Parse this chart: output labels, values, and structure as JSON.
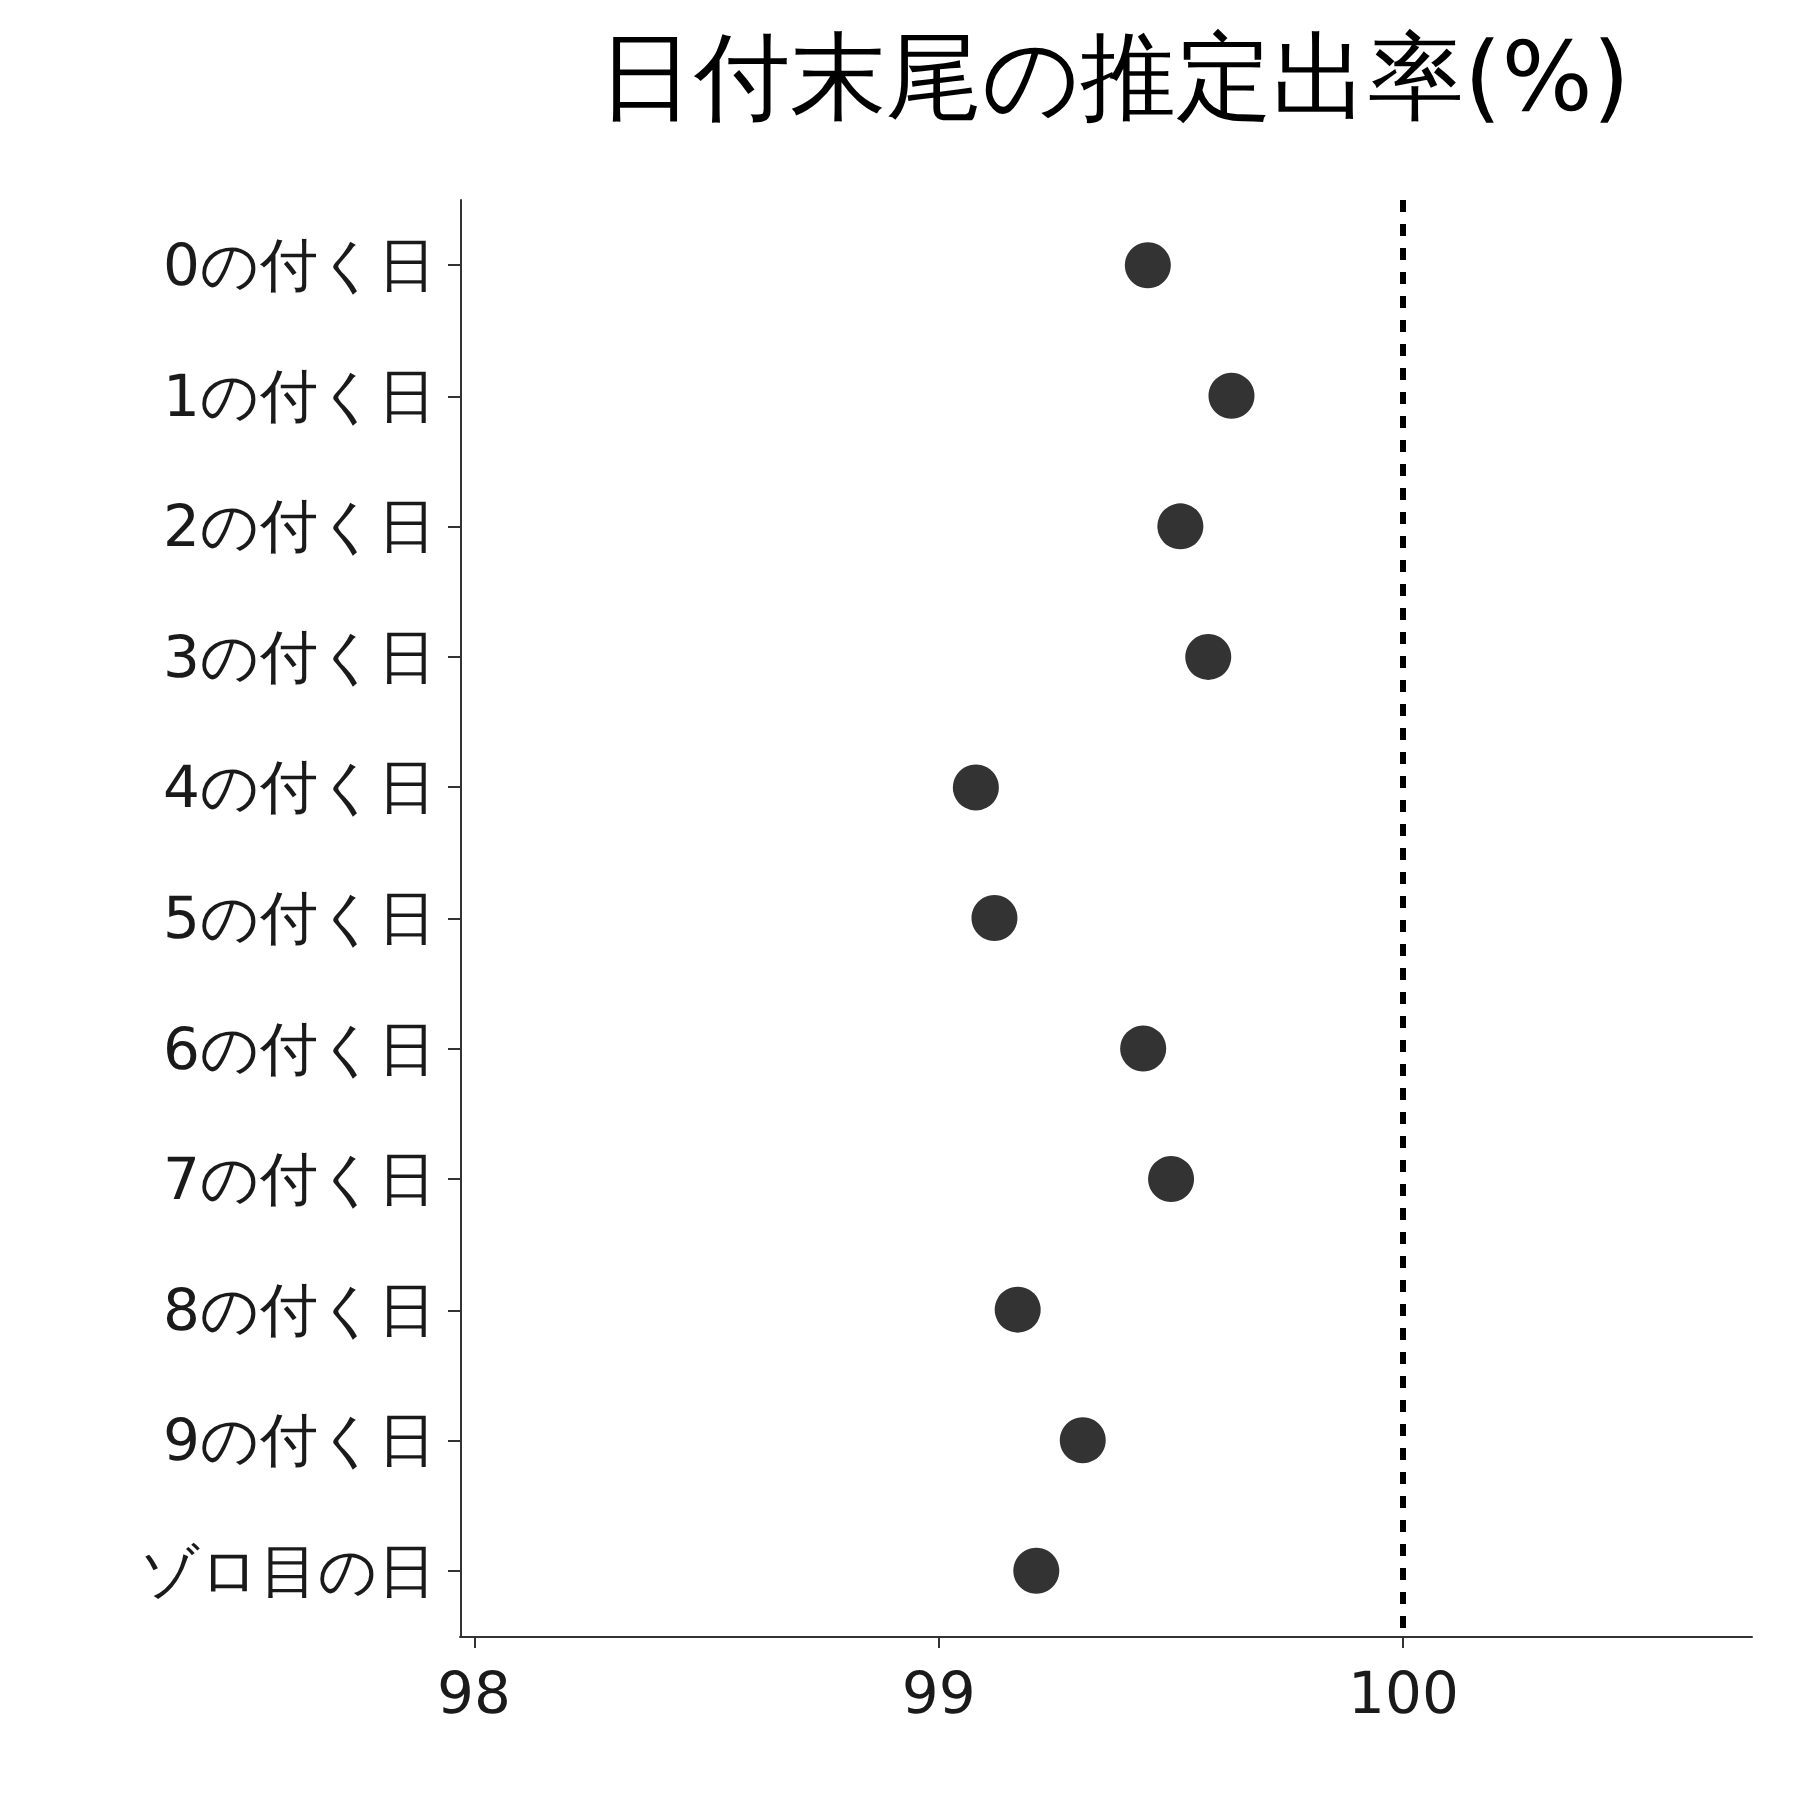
{
  "chart_data": {
    "type": "scatter",
    "title": "日付末尾の推定出率(%)",
    "orientation": "horizontal",
    "categories": [
      "0の付く日",
      "1の付く日",
      "2の付く日",
      "3の付く日",
      "4の付く日",
      "5の付く日",
      "6の付く日",
      "7の付く日",
      "8の付く日",
      "9の付く日",
      "ゾロ目の日"
    ],
    "values": [
      99.45,
      99.63,
      99.52,
      99.58,
      99.08,
      99.12,
      99.44,
      99.5,
      99.17,
      99.31,
      99.21
    ],
    "color": "#000000",
    "marker": "circle",
    "xlim": [
      97.97,
      100.75
    ],
    "xticks": [
      98,
      99,
      100
    ],
    "grid": false,
    "ref_lines": [
      {
        "axis": "x",
        "value": 100,
        "color": "#000000",
        "line_style": "dashed"
      }
    ]
  }
}
